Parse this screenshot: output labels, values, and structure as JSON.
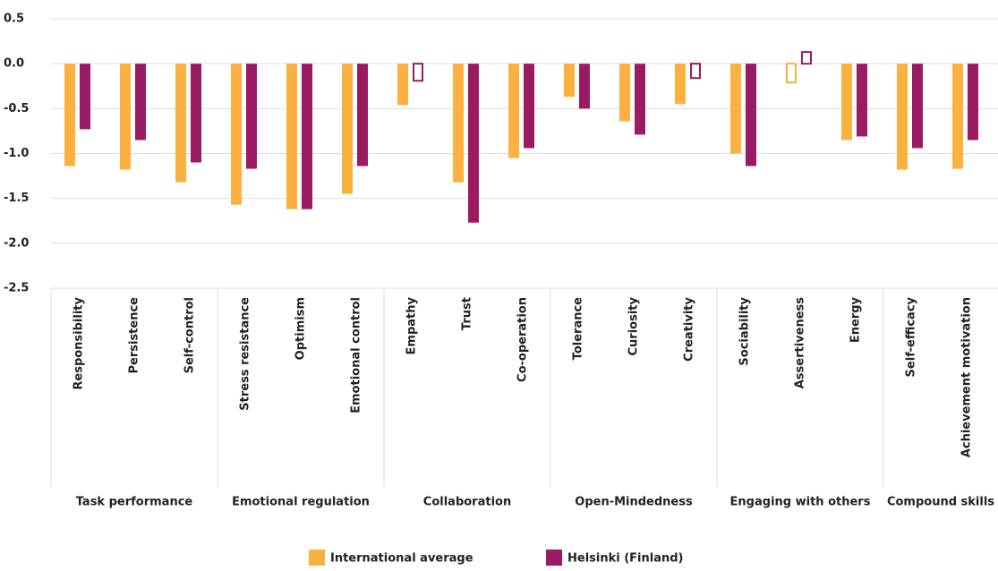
{
  "chart_data": {
    "type": "bar",
    "groups": [
      {
        "label": "Task performance",
        "categories": [
          "Responsibility",
          "Persistence",
          "Self-control"
        ]
      },
      {
        "label": "Emotional regulation",
        "categories": [
          "Stress resistance",
          "Optimism",
          "Emotional control"
        ]
      },
      {
        "label": "Collaboration",
        "categories": [
          "Empathy",
          "Trust",
          "Co-operation"
        ]
      },
      {
        "label": "Open-Mindedness",
        "categories": [
          "Tolerance",
          "Curiosity",
          "Creativity"
        ]
      },
      {
        "label": "Engaging with others",
        "categories": [
          "Sociability",
          "Assertiveness",
          "Energy"
        ]
      },
      {
        "label": "Compound skills",
        "categories": [
          "Self-efficacy",
          "Achievement motivation"
        ]
      }
    ],
    "series": [
      {
        "name": "International average",
        "color": "#fbb040",
        "values": [
          -1.14,
          -1.18,
          -1.32,
          -1.57,
          -1.62,
          -1.45,
          -0.46,
          -1.32,
          -1.05,
          -0.37,
          -0.64,
          -0.45,
          -1.0,
          -0.21,
          -0.85,
          -1.18,
          -1.17
        ],
        "outline": [
          false,
          false,
          false,
          false,
          false,
          false,
          false,
          false,
          false,
          false,
          false,
          false,
          false,
          true,
          false,
          false,
          false
        ]
      },
      {
        "name": "Helsinki (Finland)",
        "color": "#9b1b62",
        "values": [
          -0.73,
          -0.85,
          -1.1,
          -1.17,
          -1.62,
          -1.14,
          -0.19,
          -1.77,
          -0.94,
          -0.5,
          -0.79,
          -0.16,
          -1.14,
          0.13,
          -0.81,
          -0.94,
          -0.85
        ],
        "outline": [
          false,
          false,
          false,
          false,
          false,
          false,
          true,
          false,
          false,
          false,
          false,
          true,
          false,
          true,
          false,
          false,
          false
        ]
      }
    ],
    "ylim": [
      -2.5,
      0.5
    ],
    "yticks": [
      {
        "value": 0.5,
        "label": "0.5"
      },
      {
        "value": 0,
        "label": "0.0"
      },
      {
        "value": -0.5,
        "label": "-0.5"
      },
      {
        "value": -1,
        "label": "-1.0"
      },
      {
        "value": -1.5,
        "label": "-1.5"
      },
      {
        "value": -2,
        "label": "-2.0"
      },
      {
        "value": -2.5,
        "label": "-2.5"
      }
    ],
    "grid": true
  }
}
